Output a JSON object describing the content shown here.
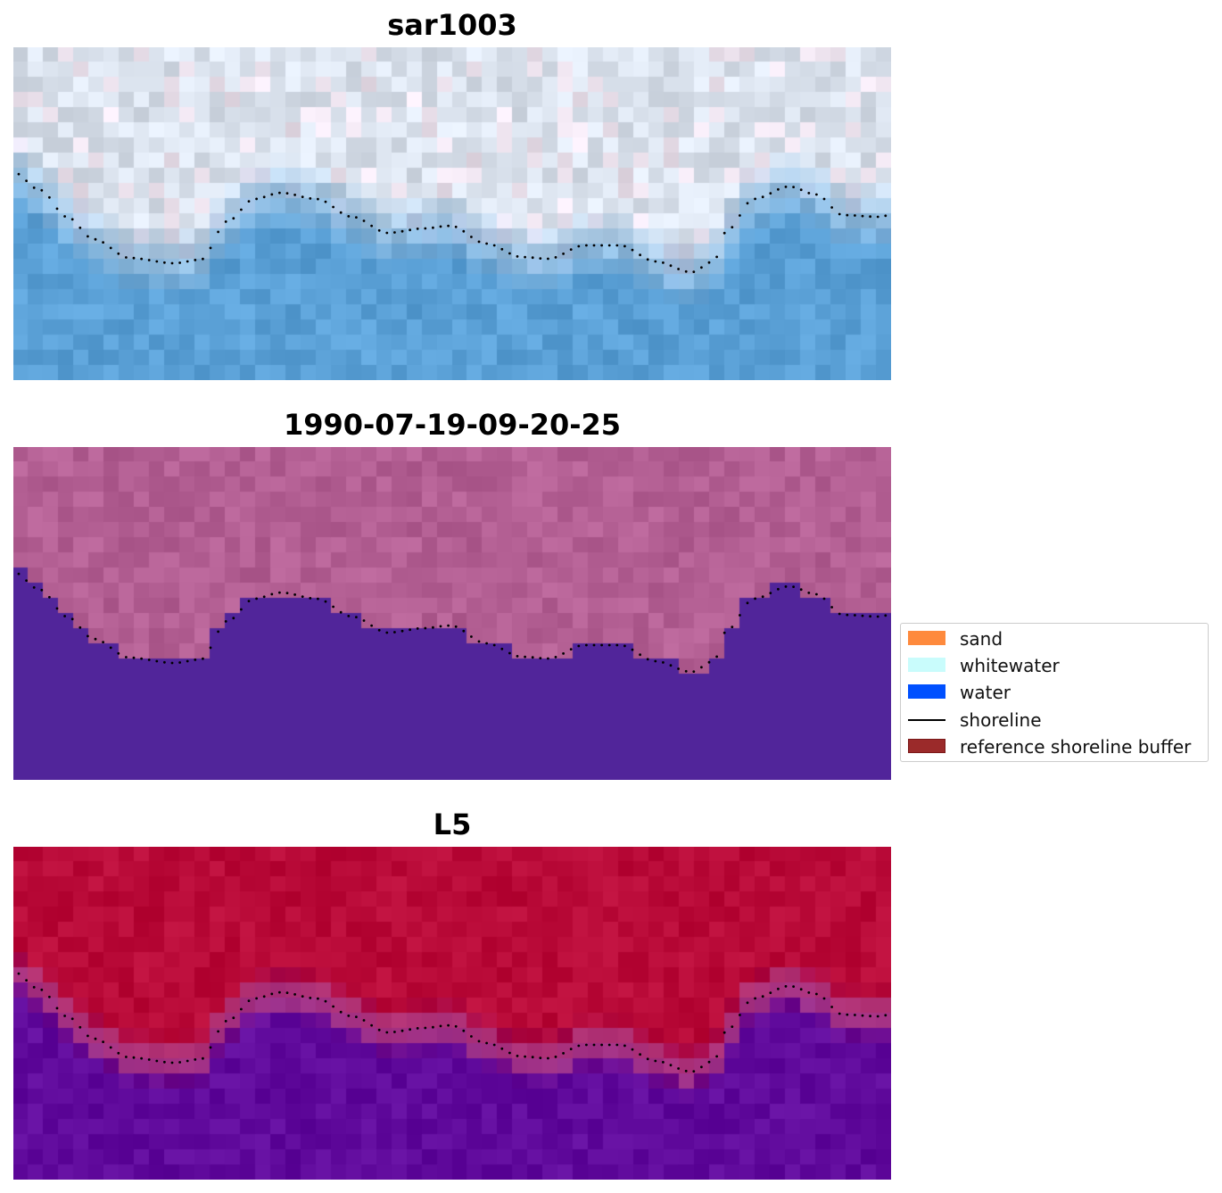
{
  "panels": [
    {
      "title": "sar1003",
      "style": "rgb"
    },
    {
      "title": "1990-07-19-09-20-25",
      "style": "classified"
    },
    {
      "title": "L5",
      "style": "index"
    }
  ],
  "legend": {
    "items": [
      {
        "label": "sand",
        "color": "#fe8a3d",
        "kind": "patch"
      },
      {
        "label": "whitewater",
        "color": "#c9fcfc",
        "kind": "patch"
      },
      {
        "label": "water",
        "color": "#0050ff",
        "kind": "patch"
      },
      {
        "label": "shoreline",
        "color": "#000000",
        "kind": "line"
      },
      {
        "label": "reference shoreline buffer",
        "color": "#9b2a2a",
        "kind": "patch"
      }
    ]
  },
  "colors": {
    "classified_water": "#51259a",
    "classified_land": "#b35f93",
    "index_land": "#b90a38",
    "index_water": "#600a9c",
    "rgb_water": "#5aa0d6",
    "rgb_land": "#d9e1ec"
  }
}
